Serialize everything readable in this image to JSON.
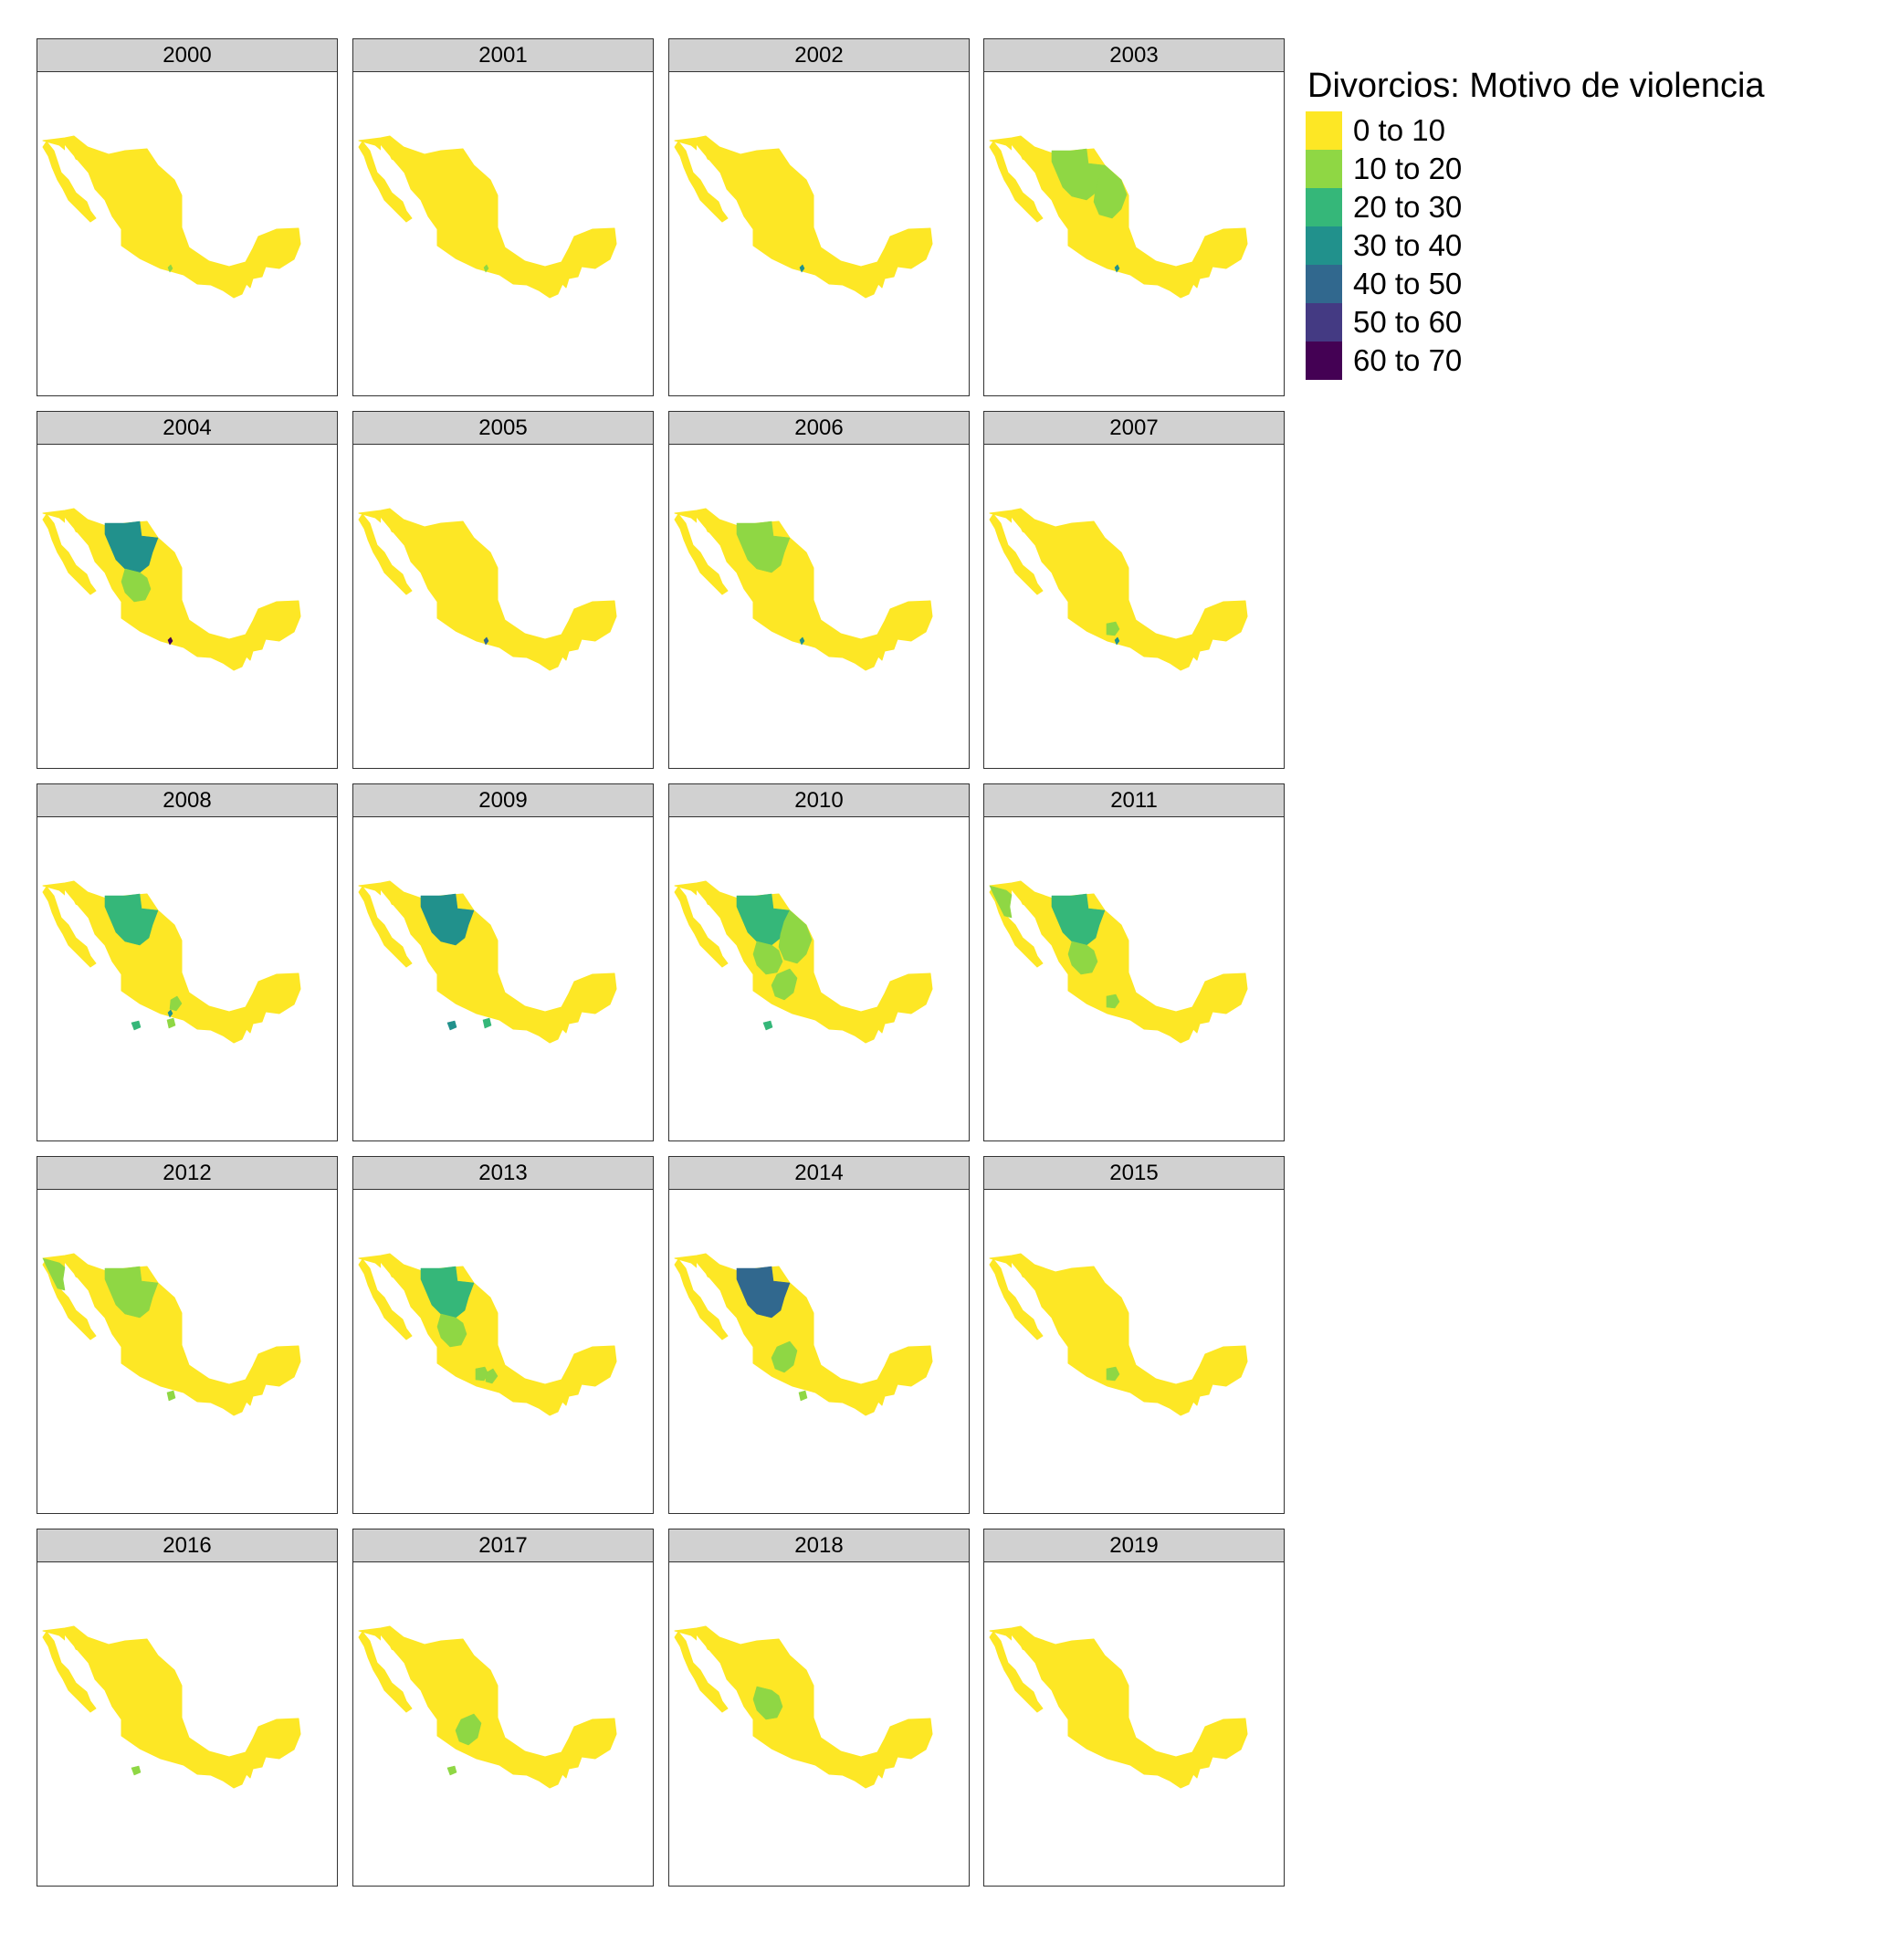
{
  "legend": {
    "title": "Divorcios: Motivo de violencia",
    "items": [
      {
        "label": "0 to 10",
        "color": "#fde725"
      },
      {
        "label": "10 to 20",
        "color": "#8fd744"
      },
      {
        "label": "20 to 30",
        "color": "#35b779"
      },
      {
        "label": "30 to 40",
        "color": "#21918c"
      },
      {
        "label": "40 to 50",
        "color": "#31688e"
      },
      {
        "label": "50 to 60",
        "color": "#443a83"
      },
      {
        "label": "60 to 70",
        "color": "#440154"
      }
    ]
  },
  "panels": [
    {
      "year": "2000",
      "highlights": [
        {
          "region": "cdmx",
          "class": 1
        }
      ]
    },
    {
      "year": "2001",
      "highlights": [
        {
          "region": "cdmx",
          "class": 1
        }
      ]
    },
    {
      "year": "2002",
      "highlights": [
        {
          "region": "cdmx",
          "class": 3
        }
      ]
    },
    {
      "year": "2003",
      "highlights": [
        {
          "region": "chihuahua",
          "class": 1
        },
        {
          "region": "coahuila",
          "class": 1
        },
        {
          "region": "cdmx",
          "class": 3
        }
      ]
    },
    {
      "year": "2004",
      "highlights": [
        {
          "region": "chihuahua",
          "class": 3
        },
        {
          "region": "durango",
          "class": 1
        },
        {
          "region": "cdmx",
          "class": 6
        }
      ]
    },
    {
      "year": "2005",
      "highlights": [
        {
          "region": "cdmx",
          "class": 4
        }
      ]
    },
    {
      "year": "2006",
      "highlights": [
        {
          "region": "chihuahua",
          "class": 1
        },
        {
          "region": "cdmx",
          "class": 3
        }
      ]
    },
    {
      "year": "2007",
      "highlights": [
        {
          "region": "queretaro",
          "class": 1
        },
        {
          "region": "cdmx",
          "class": 3
        }
      ]
    },
    {
      "year": "2008",
      "highlights": [
        {
          "region": "chihuahua",
          "class": 2
        },
        {
          "region": "colima",
          "class": 2
        },
        {
          "region": "cdmx",
          "class": 3
        },
        {
          "region": "morelos",
          "class": 1
        },
        {
          "region": "hidalgo",
          "class": 1
        }
      ]
    },
    {
      "year": "2009",
      "highlights": [
        {
          "region": "chihuahua",
          "class": 3
        },
        {
          "region": "colima",
          "class": 3
        },
        {
          "region": "morelos",
          "class": 2
        }
      ]
    },
    {
      "year": "2010",
      "highlights": [
        {
          "region": "chihuahua",
          "class": 2
        },
        {
          "region": "coahuila",
          "class": 1
        },
        {
          "region": "durango",
          "class": 1
        },
        {
          "region": "zacatecas",
          "class": 1
        },
        {
          "region": "colima",
          "class": 2
        }
      ]
    },
    {
      "year": "2011",
      "highlights": [
        {
          "region": "baja_california",
          "class": 1
        },
        {
          "region": "chihuahua",
          "class": 2
        },
        {
          "region": "durango",
          "class": 1
        },
        {
          "region": "queretaro",
          "class": 1
        }
      ]
    },
    {
      "year": "2012",
      "highlights": [
        {
          "region": "baja_california",
          "class": 1
        },
        {
          "region": "chihuahua",
          "class": 1
        },
        {
          "region": "morelos",
          "class": 1
        }
      ]
    },
    {
      "year": "2013",
      "highlights": [
        {
          "region": "chihuahua",
          "class": 2
        },
        {
          "region": "durango",
          "class": 1
        },
        {
          "region": "queretaro",
          "class": 1
        },
        {
          "region": "hidalgo",
          "class": 1
        }
      ]
    },
    {
      "year": "2014",
      "highlights": [
        {
          "region": "chihuahua",
          "class": 4
        },
        {
          "region": "zacatecas",
          "class": 1
        },
        {
          "region": "morelos",
          "class": 1
        }
      ]
    },
    {
      "year": "2015",
      "highlights": [
        {
          "region": "queretaro",
          "class": 1
        }
      ]
    },
    {
      "year": "2016",
      "highlights": [
        {
          "region": "colima",
          "class": 1
        }
      ]
    },
    {
      "year": "2017",
      "highlights": [
        {
          "region": "zacatecas",
          "class": 1
        },
        {
          "region": "colima",
          "class": 1
        }
      ]
    },
    {
      "year": "2018",
      "highlights": [
        {
          "region": "durango",
          "class": 1
        }
      ]
    },
    {
      "year": "2019",
      "highlights": []
    }
  ]
}
